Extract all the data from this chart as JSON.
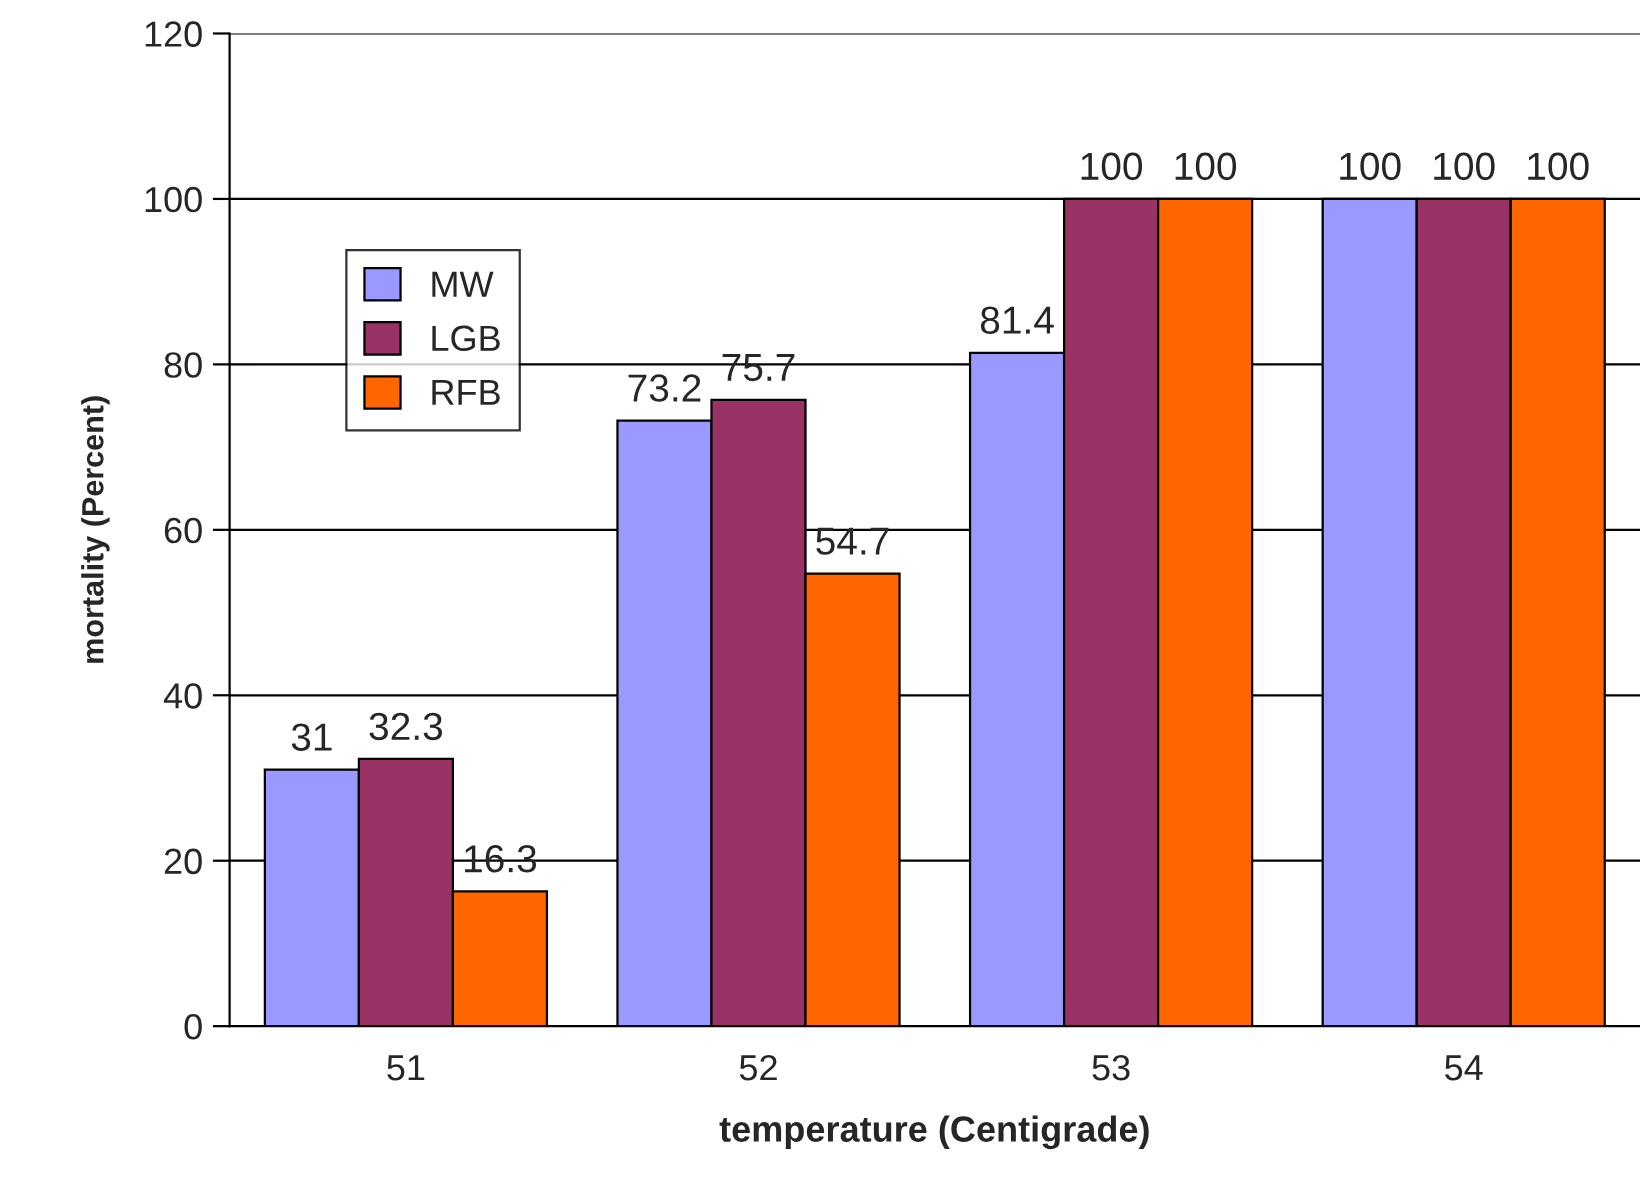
{
  "chart_data": {
    "type": "bar",
    "xlabel": "temperature (Centigrade)",
    "ylabel": "mortality (Percent)",
    "categories": [
      "51",
      "52",
      "53",
      "54"
    ],
    "series": [
      {
        "name": "MW",
        "color": "#9999ff",
        "values": [
          31,
          73.2,
          81.4,
          100
        ]
      },
      {
        "name": "LGB",
        "color": "#993366",
        "values": [
          32.3,
          75.7,
          100,
          100
        ]
      },
      {
        "name": "RFB",
        "color": "#ff6600",
        "values": [
          16.3,
          54.7,
          100,
          100
        ]
      }
    ],
    "ylim": [
      0,
      120
    ],
    "yticks": [
      0,
      20,
      40,
      60,
      80,
      100,
      120
    ],
    "grid": "y",
    "legend": "top left",
    "data_labels": true
  }
}
